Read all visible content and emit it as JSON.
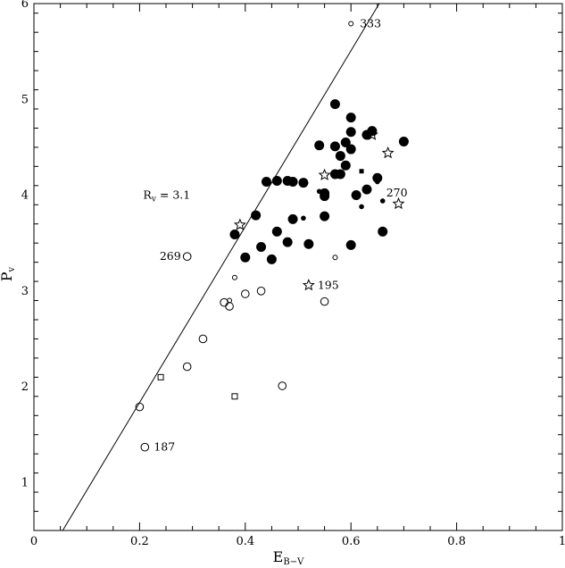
{
  "chart_data": {
    "type": "scatter",
    "xlabel": {
      "main": "E",
      "sub": "B−V"
    },
    "ylabel": {
      "main": "P",
      "sub": "v"
    },
    "xlim": [
      0,
      1
    ],
    "ylim": [
      0.5,
      6
    ],
    "xticks": [
      "0",
      "0.2",
      "0.4",
      "0.6",
      "0.8",
      "1"
    ],
    "yticks": [
      "1",
      "2",
      "3",
      "4",
      "5",
      "6"
    ],
    "line": {
      "slope": 9.18,
      "intercept": 0.0,
      "label_main": "R",
      "label_sub": "v",
      "label_rest": " = 3.1"
    },
    "series": [
      {
        "marker": "filled-circle-large",
        "points": [
          [
            0.57,
            4.95
          ],
          [
            0.6,
            4.81
          ],
          [
            0.6,
            4.66
          ],
          [
            0.63,
            4.63
          ],
          [
            0.64,
            4.67
          ],
          [
            0.7,
            4.56
          ],
          [
            0.54,
            4.52
          ],
          [
            0.57,
            4.51
          ],
          [
            0.59,
            4.55
          ],
          [
            0.6,
            4.48
          ],
          [
            0.58,
            4.41
          ],
          [
            0.59,
            4.31
          ],
          [
            0.57,
            4.22
          ],
          [
            0.58,
            4.22
          ],
          [
            0.65,
            4.18
          ],
          [
            0.44,
            4.14
          ],
          [
            0.46,
            4.15
          ],
          [
            0.48,
            4.15
          ],
          [
            0.49,
            4.14
          ],
          [
            0.51,
            4.13
          ],
          [
            0.63,
            4.06
          ],
          [
            0.55,
            4.02
          ],
          [
            0.55,
            3.99
          ],
          [
            0.61,
            4.0
          ],
          [
            0.42,
            3.79
          ],
          [
            0.49,
            3.75
          ],
          [
            0.55,
            3.78
          ],
          [
            0.38,
            3.59
          ],
          [
            0.46,
            3.62
          ],
          [
            0.66,
            3.62
          ],
          [
            0.48,
            3.51
          ],
          [
            0.52,
            3.49
          ],
          [
            0.43,
            3.46
          ],
          [
            0.6,
            3.48
          ],
          [
            0.4,
            3.35
          ],
          [
            0.45,
            3.33
          ]
        ]
      },
      {
        "marker": "filled-circle-small",
        "points": [
          [
            0.54,
            4.04
          ],
          [
            0.51,
            3.76
          ],
          [
            0.62,
            3.88
          ],
          [
            0.66,
            3.94
          ],
          [
            0.65,
            4.14
          ]
        ]
      },
      {
        "marker": "filled-square",
        "points": [
          [
            0.62,
            4.25
          ]
        ]
      },
      {
        "marker": "open-circle-large",
        "points": [
          [
            0.29,
            3.36
          ],
          [
            0.43,
            3.0
          ],
          [
            0.4,
            2.97
          ],
          [
            0.36,
            2.88
          ],
          [
            0.37,
            2.84
          ],
          [
            0.55,
            2.89
          ],
          [
            0.32,
            2.5
          ],
          [
            0.29,
            2.21
          ],
          [
            0.47,
            2.01
          ],
          [
            0.2,
            1.79
          ],
          [
            0.21,
            1.37
          ]
        ]
      },
      {
        "marker": "open-circle-small",
        "points": [
          [
            0.6,
            5.79
          ],
          [
            0.57,
            3.35
          ],
          [
            0.38,
            3.14
          ],
          [
            0.37,
            2.9
          ]
        ]
      },
      {
        "marker": "open-square",
        "points": [
          [
            0.24,
            2.1
          ],
          [
            0.38,
            1.9
          ]
        ]
      },
      {
        "marker": "open-star",
        "points": [
          [
            0.39,
            3.69
          ],
          [
            0.55,
            4.21
          ],
          [
            0.52,
            3.06
          ],
          [
            0.67,
            4.44
          ],
          [
            0.69,
            3.91
          ],
          [
            0.64,
            4.63
          ]
        ]
      }
    ],
    "annotations": [
      {
        "text": "333",
        "x": 0.6,
        "y": 5.79,
        "anchor": "right"
      },
      {
        "text": "270",
        "x": 0.66,
        "y": 3.94,
        "anchor": "right-up"
      },
      {
        "text": "269",
        "x": 0.29,
        "y": 3.36,
        "anchor": "left"
      },
      {
        "text": "195",
        "x": 0.52,
        "y": 3.06,
        "anchor": "right"
      },
      {
        "text": "187",
        "x": 0.21,
        "y": 1.37,
        "anchor": "right"
      }
    ]
  }
}
